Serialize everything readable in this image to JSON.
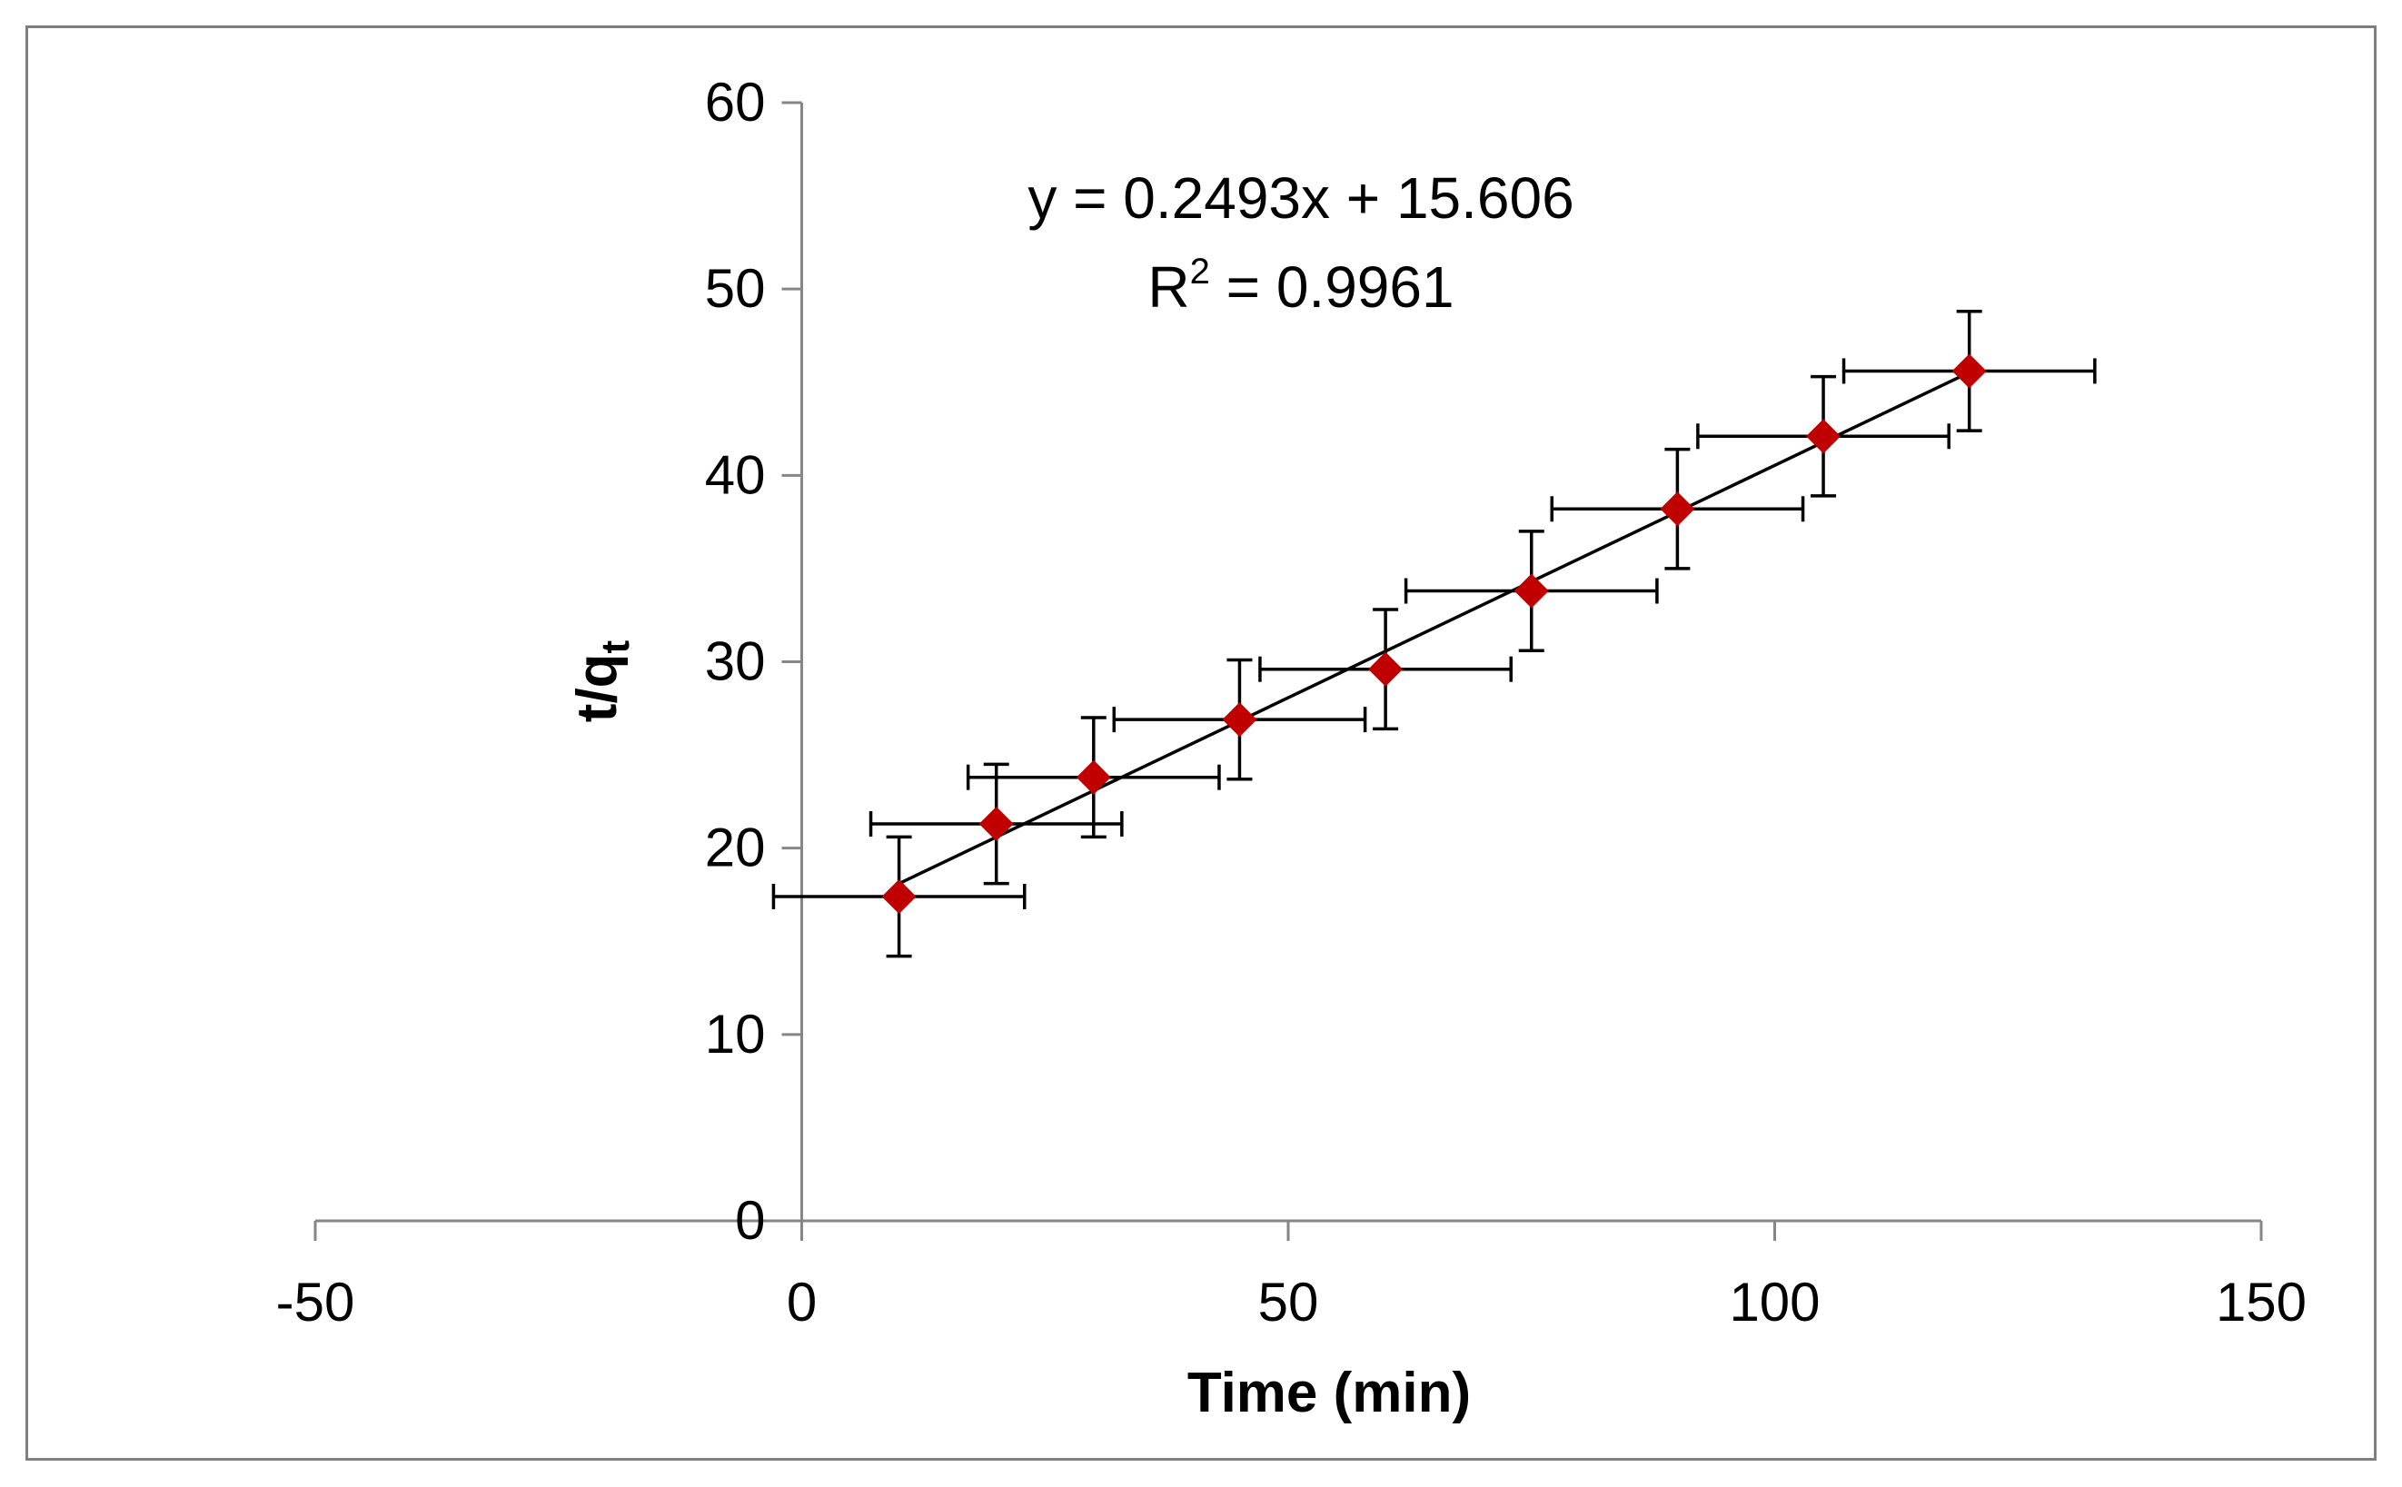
{
  "chart_data": {
    "type": "scatter",
    "title": "",
    "xlabel": "Time (min)",
    "ylabel_main": "t/q",
    "ylabel_sub": "t",
    "xlim": [
      -50,
      150
    ],
    "ylim": [
      0,
      60
    ],
    "xticks": [
      -50,
      0,
      50,
      100,
      150
    ],
    "yticks": [
      0,
      10,
      20,
      30,
      40,
      50,
      60
    ],
    "grid": false,
    "series": [
      {
        "name": "t/qt",
        "marker": "diamond",
        "color": "#C00000",
        "x": [
          10,
          20,
          30,
          45,
          60,
          75,
          90,
          105,
          120
        ],
        "y": [
          17.4,
          21.3,
          23.8,
          26.9,
          29.6,
          33.8,
          38.2,
          42.1,
          45.6
        ],
        "x_error": [
          12.9,
          12.9,
          12.9,
          12.9,
          12.9,
          12.9,
          12.9,
          12.9,
          12.9
        ],
        "y_error": [
          3.2,
          3.2,
          3.2,
          3.2,
          3.2,
          3.2,
          3.2,
          3.2,
          3.2
        ]
      }
    ],
    "trendline": {
      "type": "linear",
      "slope": 0.2493,
      "intercept": 15.606,
      "x_range": [
        10,
        120
      ],
      "equation_text": "y = 0.2493x + 15.606",
      "r2_prefix": "R",
      "r2_sup": "2",
      "r2_value_text": " = 0.9961"
    }
  }
}
